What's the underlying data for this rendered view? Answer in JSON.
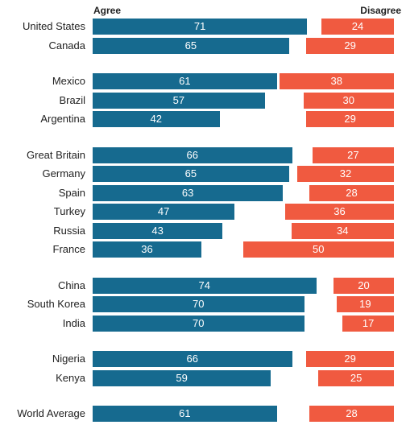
{
  "chart_data": {
    "type": "bar",
    "orientation": "horizontal",
    "layout": "diverging",
    "header_agree": "Agree",
    "header_disagree": "Disagree",
    "series": [
      {
        "name": "Agree",
        "color": "#166a8f"
      },
      {
        "name": "Disagree",
        "color": "#f05a40"
      }
    ],
    "groups": [
      {
        "rows": [
          {
            "label": "United States",
            "agree": 71,
            "disagree": 24
          },
          {
            "label": "Canada",
            "agree": 65,
            "disagree": 29
          }
        ]
      },
      {
        "rows": [
          {
            "label": "Mexico",
            "agree": 61,
            "disagree": 38
          },
          {
            "label": "Brazil",
            "agree": 57,
            "disagree": 30
          },
          {
            "label": "Argentina",
            "agree": 42,
            "disagree": 29
          }
        ]
      },
      {
        "rows": [
          {
            "label": "Great Britain",
            "agree": 66,
            "disagree": 27
          },
          {
            "label": "Germany",
            "agree": 65,
            "disagree": 32
          },
          {
            "label": "Spain",
            "agree": 63,
            "disagree": 28
          },
          {
            "label": "Turkey",
            "agree": 47,
            "disagree": 36
          },
          {
            "label": "Russia",
            "agree": 43,
            "disagree": 34
          },
          {
            "label": "France",
            "agree": 36,
            "disagree": 50
          }
        ]
      },
      {
        "rows": [
          {
            "label": "China",
            "agree": 74,
            "disagree": 20
          },
          {
            "label": "South Korea",
            "agree": 70,
            "disagree": 19
          },
          {
            "label": "India",
            "agree": 70,
            "disagree": 17
          }
        ]
      },
      {
        "rows": [
          {
            "label": "Nigeria",
            "agree": 66,
            "disagree": 29
          },
          {
            "label": "Kenya",
            "agree": 59,
            "disagree": 25
          }
        ]
      },
      {
        "rows": [
          {
            "label": "World Average",
            "agree": 61,
            "disagree": 28
          }
        ]
      }
    ]
  }
}
